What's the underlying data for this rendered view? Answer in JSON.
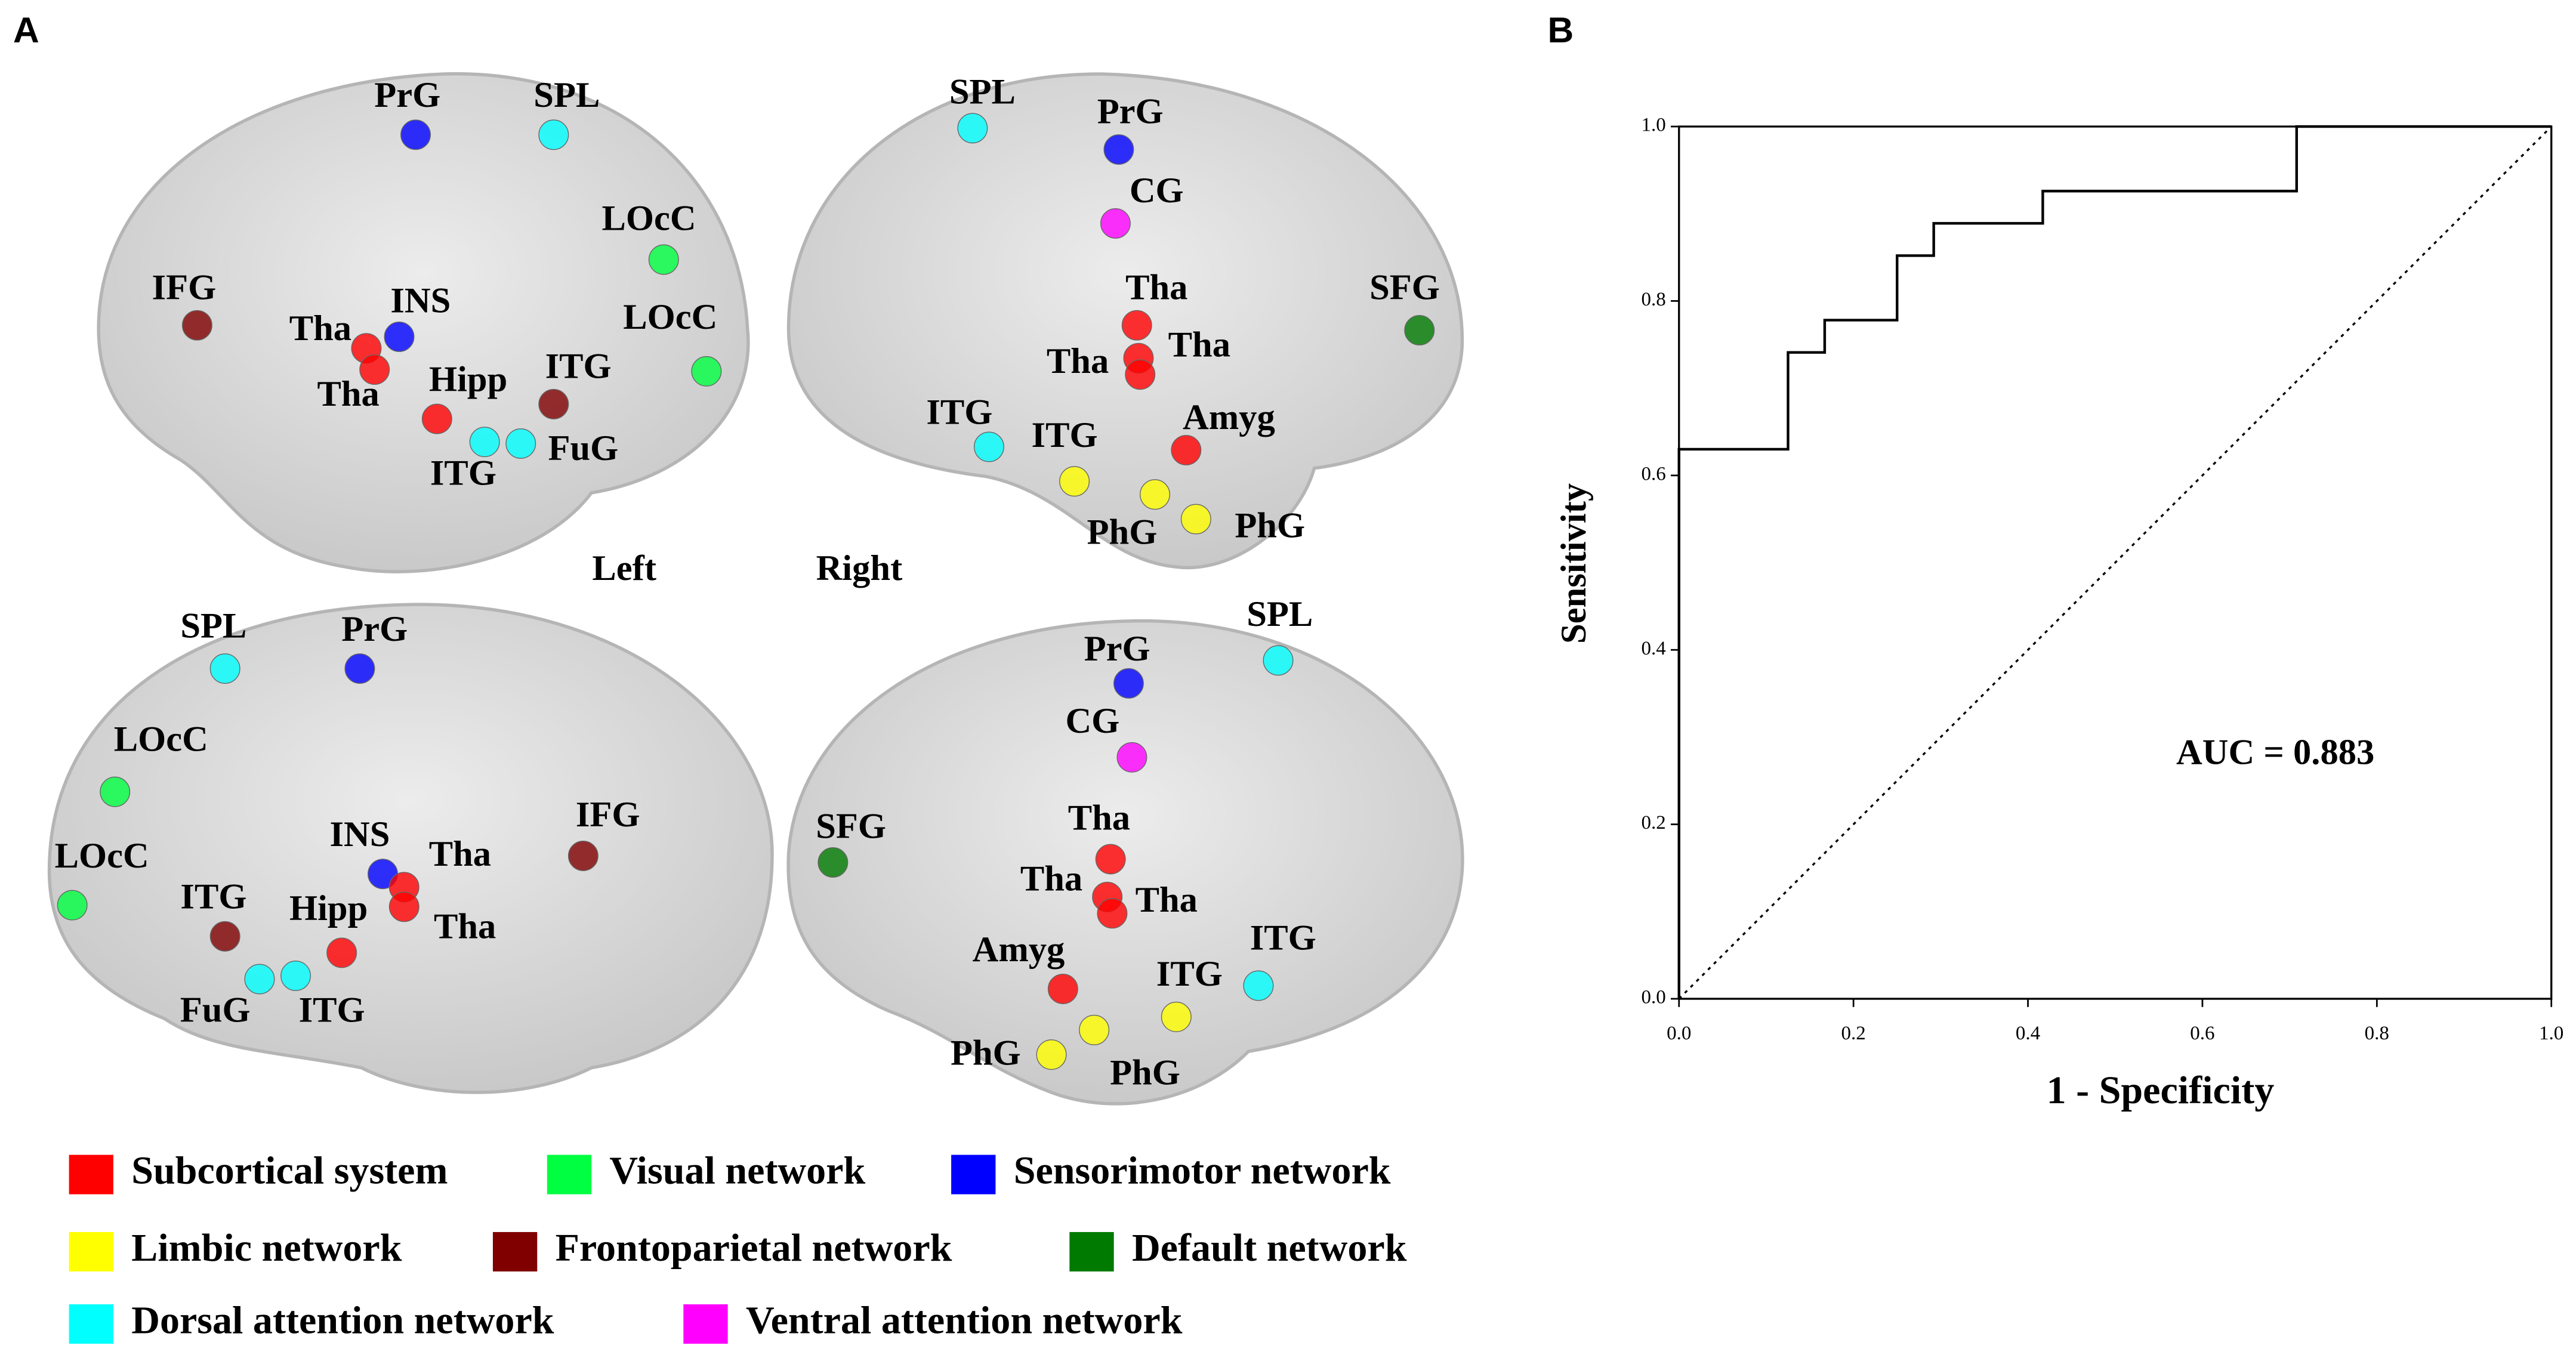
{
  "panel_labels": [
    "A",
    "B"
  ],
  "panel_a": {
    "hemisphere_labels": [
      "Left",
      "Right"
    ],
    "legend": [
      {
        "name": "Subcortical system",
        "color": "#ff0000"
      },
      {
        "name": "Visual network",
        "color": "#00ff40"
      },
      {
        "name": "Sensorimotor network",
        "color": "#0000ff"
      },
      {
        "name": "Limbic network",
        "color": "#ffff00"
      },
      {
        "name": "Frontoparietal network",
        "color": "#800000"
      },
      {
        "name": "Default network",
        "color": "#007a00"
      },
      {
        "name": "Dorsal attention network",
        "color": "#00ffff"
      },
      {
        "name": "Ventral attention network",
        "color": "#ff00ff"
      }
    ],
    "regions": [
      {
        "label": "PrG",
        "color": "#0000ff"
      },
      {
        "label": "SPL",
        "color": "#00ffff"
      },
      {
        "label": "LOcC",
        "color": "#00ff40"
      },
      {
        "label": "IFG",
        "color": "#800000"
      },
      {
        "label": "Tha",
        "color": "#ff0000"
      },
      {
        "label": "INS",
        "color": "#0000ff"
      },
      {
        "label": "LOcC",
        "color": "#00ff40"
      },
      {
        "label": "Tha",
        "color": "#ff0000"
      },
      {
        "label": "Hipp",
        "color": "#ff0000"
      },
      {
        "label": "ITG",
        "color": "#800000"
      },
      {
        "label": "ITG",
        "color": "#00ffff"
      },
      {
        "label": "FuG",
        "color": "#00ffff"
      },
      {
        "label": "SPL",
        "color": "#00ffff"
      },
      {
        "label": "PrG",
        "color": "#0000ff"
      },
      {
        "label": "CG",
        "color": "#ff00ff"
      },
      {
        "label": "Tha",
        "color": "#ff0000"
      },
      {
        "label": "SFG",
        "color": "#007a00"
      },
      {
        "label": "Tha",
        "color": "#ff0000"
      },
      {
        "label": "Tha",
        "color": "#ff0000"
      },
      {
        "label": "ITG",
        "color": "#00ffff"
      },
      {
        "label": "ITG",
        "color": "#ffff00"
      },
      {
        "label": "Amyg",
        "color": "#ff0000"
      },
      {
        "label": "PhG",
        "color": "#ffff00"
      },
      {
        "label": "PhG",
        "color": "#ffff00"
      },
      {
        "label": "SPL",
        "color": "#00ffff"
      },
      {
        "label": "PrG",
        "color": "#0000ff"
      },
      {
        "label": "LOcC",
        "color": "#00ff40"
      },
      {
        "label": "IFG",
        "color": "#800000"
      },
      {
        "label": "INS",
        "color": "#0000ff"
      },
      {
        "label": "Tha",
        "color": "#ff0000"
      },
      {
        "label": "LOcC",
        "color": "#00ff40"
      },
      {
        "label": "ITG",
        "color": "#800000"
      },
      {
        "label": "Hipp",
        "color": "#ff0000"
      },
      {
        "label": "Tha",
        "color": "#ff0000"
      },
      {
        "label": "FuG",
        "color": "#00ffff"
      },
      {
        "label": "ITG",
        "color": "#00ffff"
      },
      {
        "label": "SPL",
        "color": "#00ffff"
      },
      {
        "label": "PrG",
        "color": "#0000ff"
      },
      {
        "label": "CG",
        "color": "#ff00ff"
      },
      {
        "label": "SFG",
        "color": "#007a00"
      },
      {
        "label": "Tha",
        "color": "#ff0000"
      },
      {
        "label": "Tha",
        "color": "#ff0000"
      },
      {
        "label": "Tha",
        "color": "#ff0000"
      },
      {
        "label": "Amyg",
        "color": "#ff0000"
      },
      {
        "label": "ITG",
        "color": "#00ffff"
      },
      {
        "label": "ITG",
        "color": "#ffff00"
      },
      {
        "label": "PhG",
        "color": "#ffff00"
      },
      {
        "label": "PhG",
        "color": "#ffff00"
      }
    ]
  },
  "chart_data": {
    "type": "line",
    "xlabel": "1 - Specificity",
    "ylabel": "Sensitivity",
    "annotation": "AUC = 0.883",
    "x": [
      0,
      0,
      0.125,
      0.125,
      0.167,
      0.167,
      0.25,
      0.25,
      0.292,
      0.292,
      0.417,
      0.417,
      0.708,
      0.708,
      1
    ],
    "series": [
      {
        "color": "#000000",
        "values": [
          0,
          0.63,
          0.63,
          0.741,
          0.741,
          0.778,
          0.778,
          0.852,
          0.852,
          0.889,
          0.889,
          0.926,
          0.926,
          1,
          1
        ]
      }
    ],
    "xlim": [
      0,
      1
    ],
    "ylim": [
      0,
      1
    ],
    "xticks": [
      {
        "value": 0,
        "label": "0.0"
      },
      0.2,
      0.4,
      0.6,
      0.8,
      {
        "value": 1,
        "label": "1.0"
      }
    ],
    "yticks": [
      {
        "value": 0,
        "label": "0.0"
      },
      0.2,
      0.4,
      0.6,
      0.8,
      {
        "value": 1,
        "label": "1.0"
      }
    ]
  }
}
